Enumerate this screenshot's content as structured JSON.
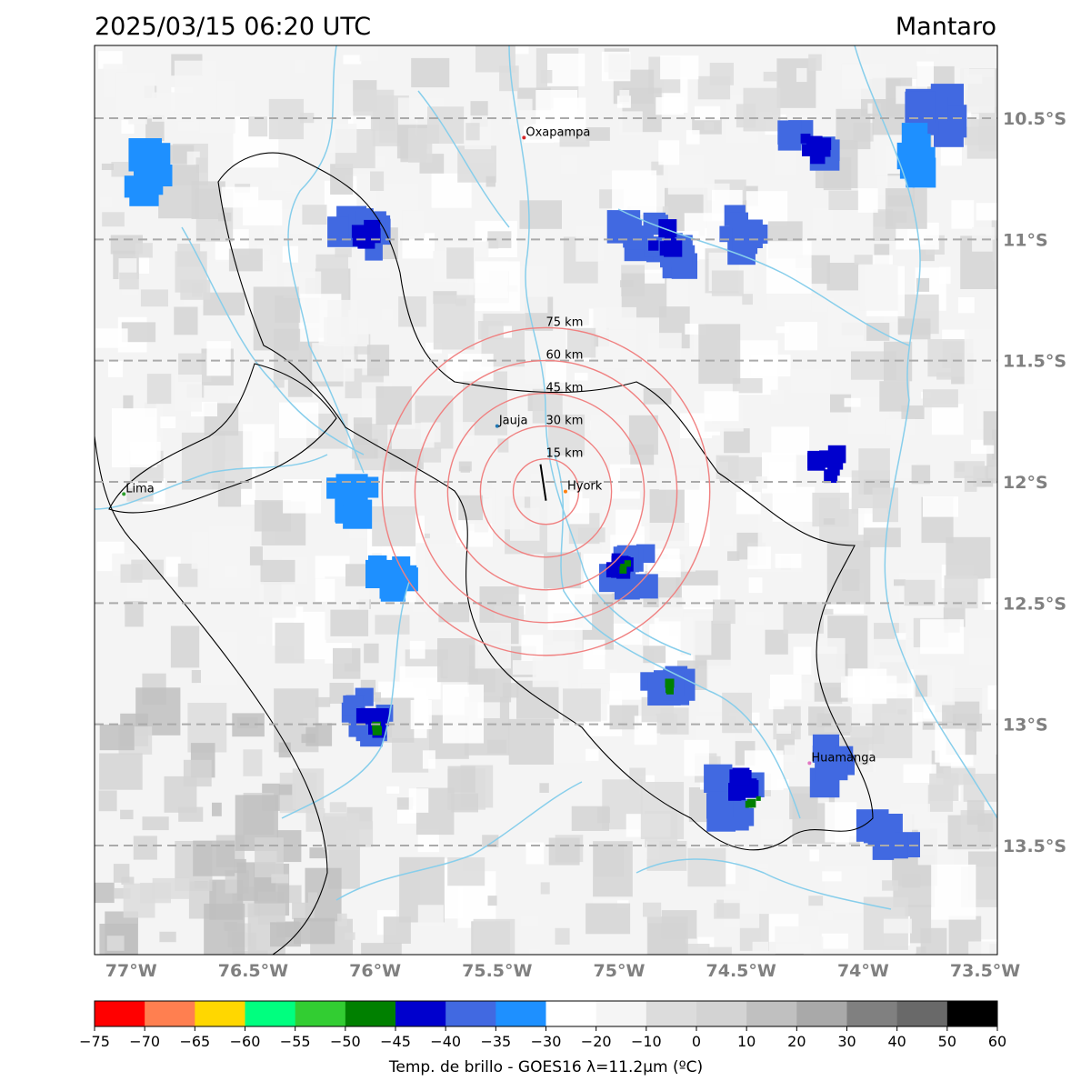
{
  "header": {
    "timestamp": "2025/03/15 06:20 UTC",
    "region": "Mantaro"
  },
  "map": {
    "lon_range": [
      -77.15,
      -73.45
    ],
    "lat_range": [
      -13.95,
      -10.2
    ],
    "lat_gridlines": [
      -10.5,
      -11.0,
      -11.5,
      -12.0,
      -12.5,
      -13.0,
      -13.5
    ],
    "lat_labels": [
      "10.5°S",
      "11°S",
      "11.5°S",
      "12°S",
      "12.5°S",
      "13°S",
      "13.5°S"
    ],
    "lon_ticks": [
      -77.0,
      -76.5,
      -76.0,
      -75.5,
      -75.0,
      -74.5,
      -74.0,
      -73.5
    ],
    "lon_labels": [
      "77°W",
      "76.5°W",
      "76°W",
      "75.5°W",
      "75°W",
      "74.5°W",
      "74°W",
      "73.5°W"
    ],
    "cities": [
      {
        "name": "Oxapampa",
        "lon": -75.39,
        "lat": -10.58,
        "color": "#d62728"
      },
      {
        "name": "Jauja",
        "lon": -75.5,
        "lat": -11.77,
        "color": "#1f77b4"
      },
      {
        "name": "Hyork",
        "lon": -75.22,
        "lat": -12.04,
        "color": "#ff7f0e"
      },
      {
        "name": "Lima",
        "lon": -77.03,
        "lat": -12.05,
        "color": "#2ca02c"
      },
      {
        "name": "Huamanga",
        "lon": -74.22,
        "lat": -13.16,
        "color": "#e377c2"
      }
    ],
    "range_rings": {
      "center_lon": -75.3,
      "center_lat": -12.04,
      "ring_color": "#f08080",
      "labels": [
        "15 km",
        "30 km",
        "45 km",
        "60 km",
        "75 km"
      ]
    },
    "cloud_cells": [
      {
        "lon": -74.78,
        "lat": -11.06,
        "temp": -37
      },
      {
        "lon": -74.9,
        "lat": -10.95,
        "temp": -36
      },
      {
        "lon": -74.82,
        "lat": -11.0,
        "temp": -44
      },
      {
        "lon": -74.22,
        "lat": -10.61,
        "temp": -36
      },
      {
        "lon": -74.2,
        "lat": -10.62,
        "temp": -44
      },
      {
        "lon": -74.5,
        "lat": -10.97,
        "temp": -40
      },
      {
        "lon": -73.7,
        "lat": -10.5,
        "temp": -36
      },
      {
        "lon": -73.8,
        "lat": -10.65,
        "temp": -35
      },
      {
        "lon": -76.05,
        "lat": -10.98,
        "temp": -37
      },
      {
        "lon": -76.03,
        "lat": -11.0,
        "temp": -45
      },
      {
        "lon": -74.96,
        "lat": -12.35,
        "temp": -38
      },
      {
        "lon": -74.98,
        "lat": -12.36,
        "temp": -45
      },
      {
        "lon": -74.98,
        "lat": -12.36,
        "temp": -48
      },
      {
        "lon": -74.82,
        "lat": -12.85,
        "temp": -36
      },
      {
        "lon": -74.8,
        "lat": -12.85,
        "temp": -48
      },
      {
        "lon": -74.52,
        "lat": -13.3,
        "temp": -36
      },
      {
        "lon": -74.5,
        "lat": -13.25,
        "temp": -45
      },
      {
        "lon": -74.45,
        "lat": -13.33,
        "temp": -48
      },
      {
        "lon": -76.02,
        "lat": -12.97,
        "temp": -36
      },
      {
        "lon": -76.01,
        "lat": -13.0,
        "temp": -44
      },
      {
        "lon": -76.0,
        "lat": -13.02,
        "temp": -48
      },
      {
        "lon": -73.9,
        "lat": -13.45,
        "temp": -36
      },
      {
        "lon": -74.12,
        "lat": -13.16,
        "temp": -40
      },
      {
        "lon": -74.15,
        "lat": -11.93,
        "temp": -45
      },
      {
        "lon": -76.08,
        "lat": -12.07,
        "temp": -35
      },
      {
        "lon": -75.95,
        "lat": -12.4,
        "temp": -35
      },
      {
        "lon": -76.95,
        "lat": -10.73,
        "temp": -35
      }
    ]
  },
  "colorbar": {
    "colors": [
      "#ff0000",
      "#ff7f50",
      "#ffd700",
      "#00ff7f",
      "#32cd32",
      "#008000",
      "#0000cd",
      "#4169e1",
      "#1e90ff",
      "#ffffff",
      "#f5f5f5",
      "#dcdcdc",
      "#d3d3d3",
      "#c0c0c0",
      "#a9a9a9",
      "#808080",
      "#696969",
      "#000000"
    ],
    "ticks": [
      "−75",
      "−70",
      "−65",
      "−60",
      "−55",
      "−50",
      "−45",
      "−40",
      "−35",
      "−30",
      "−20",
      "−10",
      "0",
      "10",
      "20",
      "30",
      "40",
      "50",
      "60"
    ],
    "label": "Temp. de brillo - GOES16 λ=11.2μm (ºC)"
  }
}
